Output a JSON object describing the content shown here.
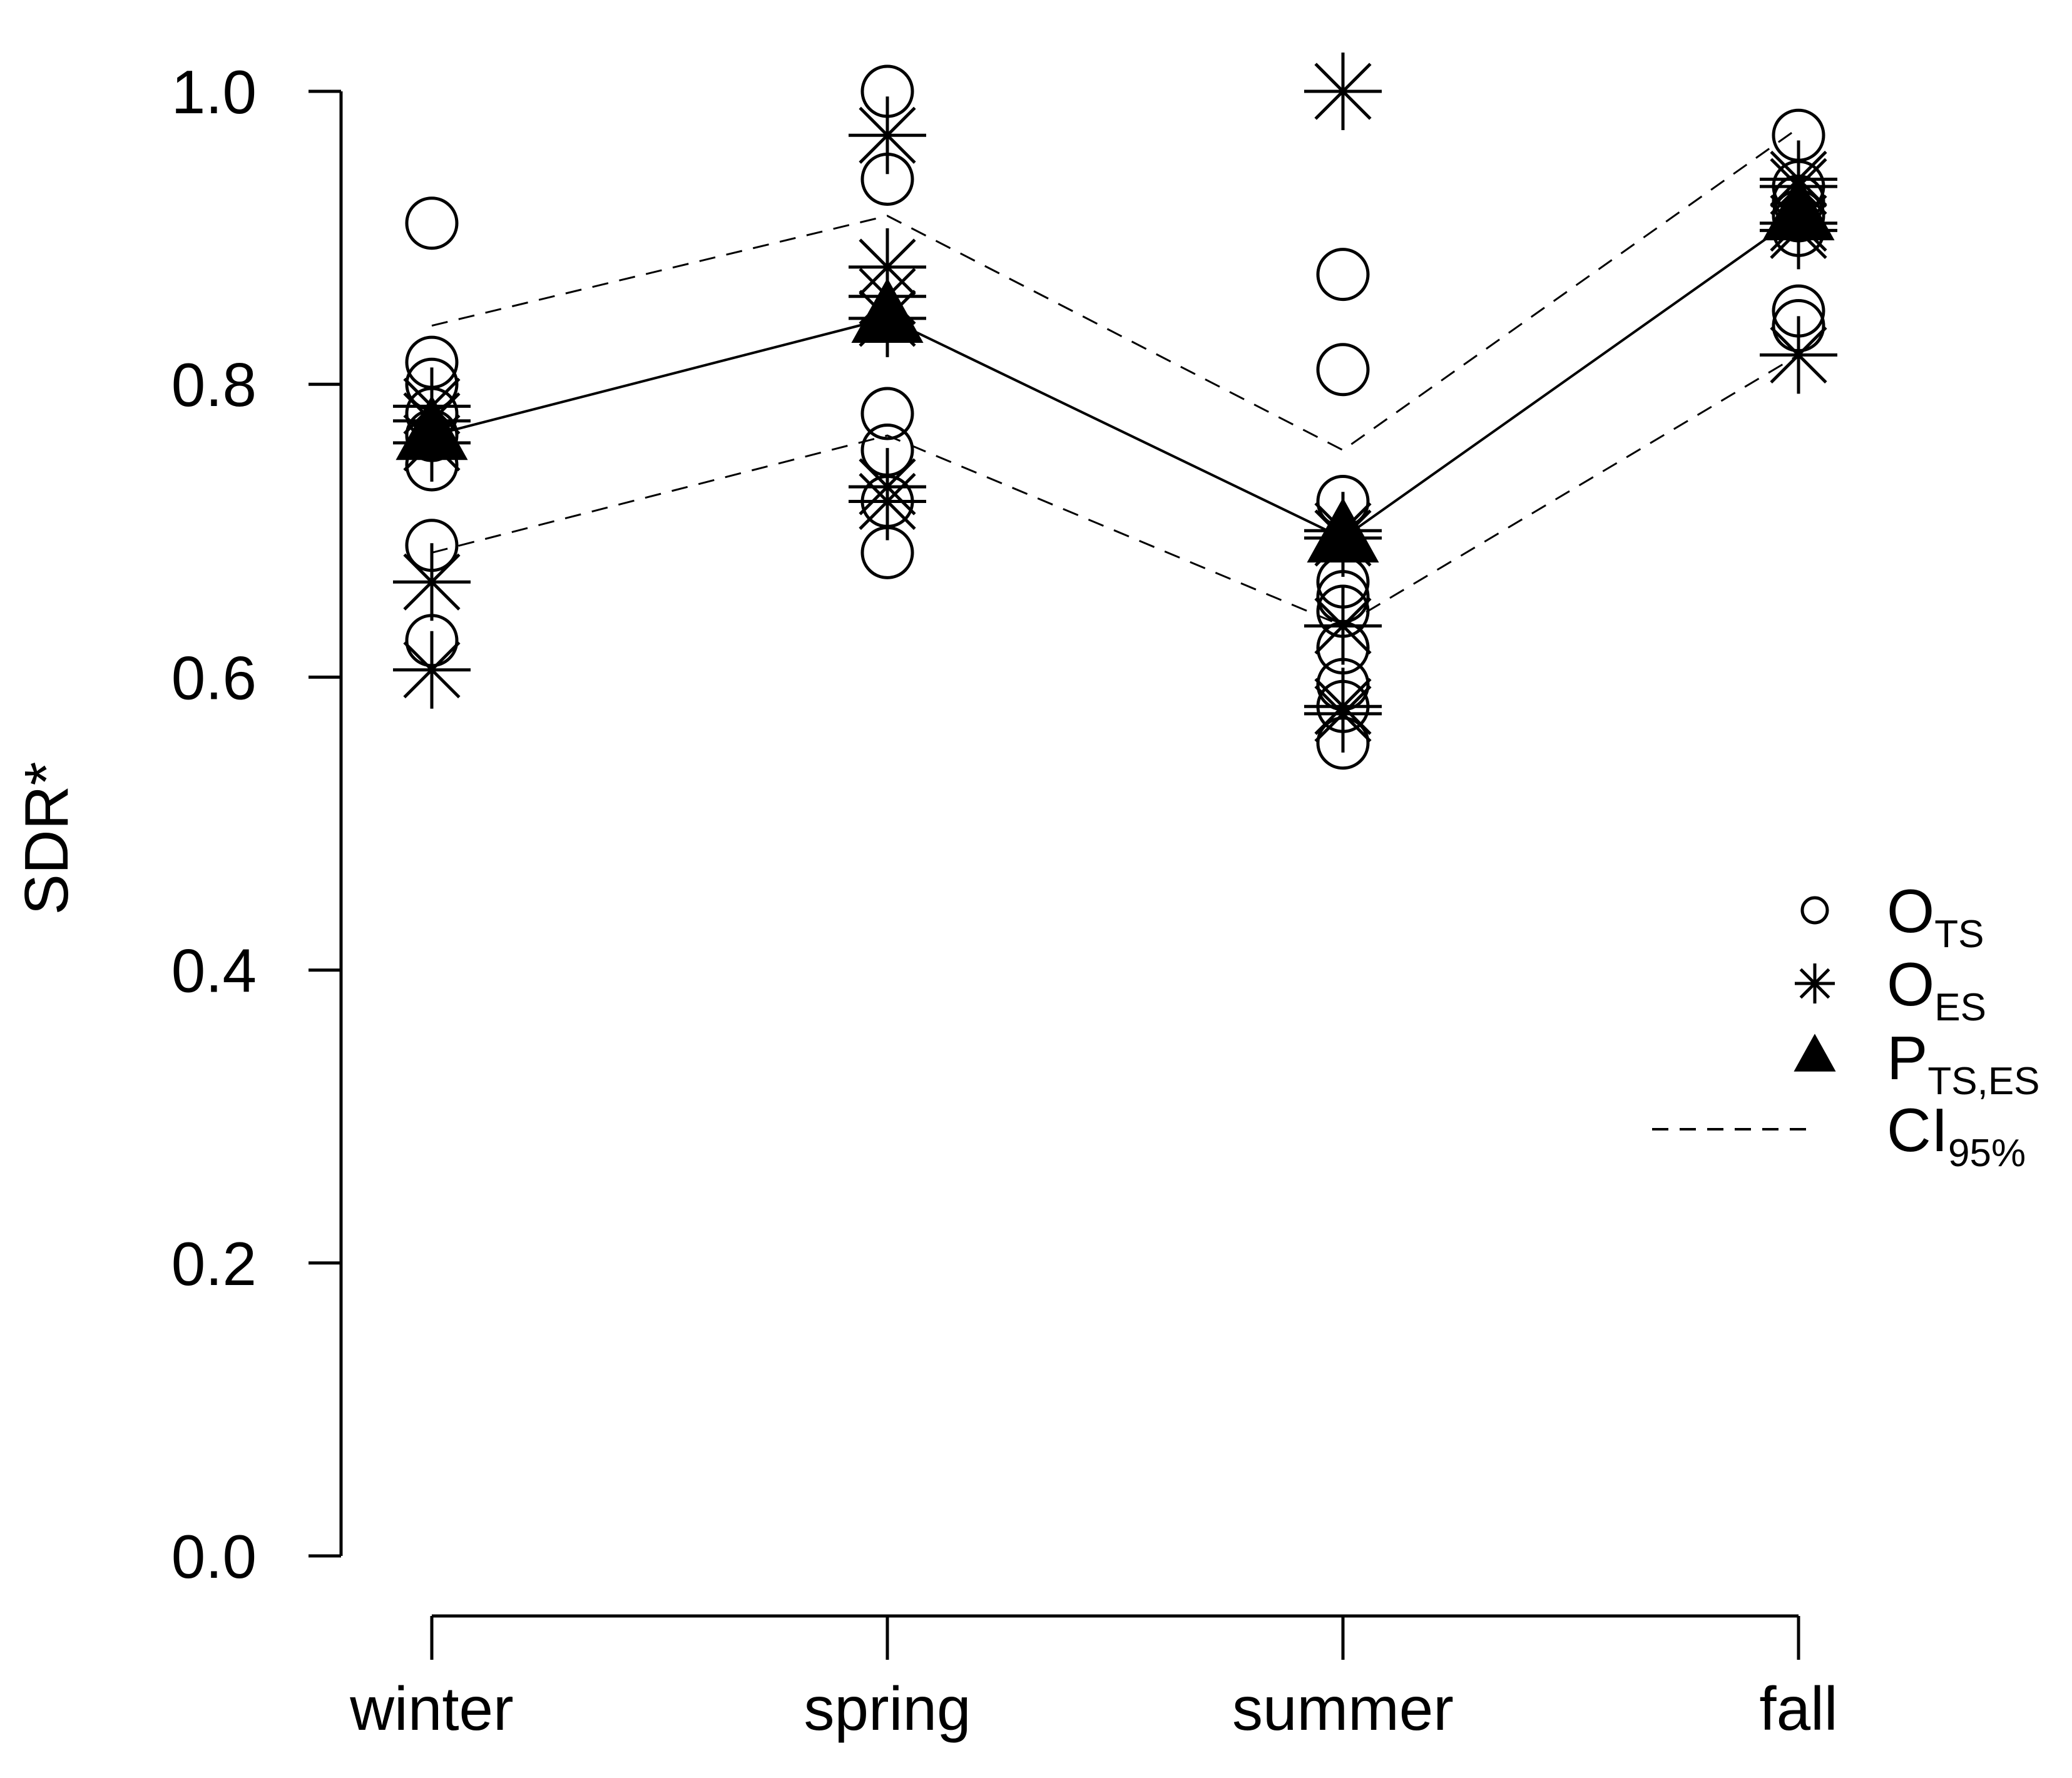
{
  "chart_data": {
    "type": "scatter",
    "title": "",
    "xlabel": "",
    "ylabel": "SDR*",
    "ylim": [
      0.0,
      1.0
    ],
    "y_ticks": [
      "0.0",
      "0.2",
      "0.4",
      "0.6",
      "0.8",
      "1.0"
    ],
    "categories": [
      "winter",
      "spring",
      "summer",
      "fall"
    ],
    "series": [
      {
        "name": "O_TS",
        "marker": "open-circle",
        "points": [
          [
            0.91,
            0.815,
            0.8,
            0.78,
            0.765,
            0.745,
            0.69,
            0.625
          ],
          [
            1.0,
            0.94,
            0.78,
            0.755,
            0.72,
            0.685
          ],
          [
            0.875,
            0.81,
            0.72,
            0.665,
            0.655,
            0.645,
            0.62,
            0.595,
            0.58,
            0.555
          ],
          [
            0.97,
            0.935,
            0.925,
            0.915,
            0.905,
            0.85,
            0.84
          ]
        ]
      },
      {
        "name": "O_ES",
        "marker": "asterisk",
        "points": [
          [
            0.785,
            0.775,
            0.76,
            0.665,
            0.605
          ],
          [
            0.97,
            0.88,
            0.86,
            0.845,
            0.73,
            0.72
          ],
          [
            1.0,
            0.7,
            0.695,
            0.635,
            0.58,
            0.575
          ],
          [
            0.94,
            0.935,
            0.91,
            0.905,
            0.82
          ]
        ]
      },
      {
        "name": "P_TS,ES",
        "marker": "filled-triangle",
        "values": [
          0.765,
          0.845,
          0.695,
          0.915
        ]
      },
      {
        "name": "CI_95%",
        "style": "dashed",
        "upper": [
          0.84,
          0.915,
          0.755,
          0.975
        ],
        "lower": [
          0.685,
          0.765,
          0.635,
          0.82
        ]
      }
    ],
    "legend": {
      "position": "right",
      "entries": [
        {
          "base": "O",
          "sub": "TS",
          "marker": "open-circle"
        },
        {
          "base": "O",
          "sub": "ES",
          "marker": "asterisk"
        },
        {
          "base": "P",
          "sub": "TS,ES",
          "marker": "filled-triangle"
        },
        {
          "base": "CI",
          "sub": "95%",
          "marker": "dashed-line"
        }
      ]
    },
    "colors": {
      "ink": "#000000",
      "background": "#ffffff"
    }
  }
}
